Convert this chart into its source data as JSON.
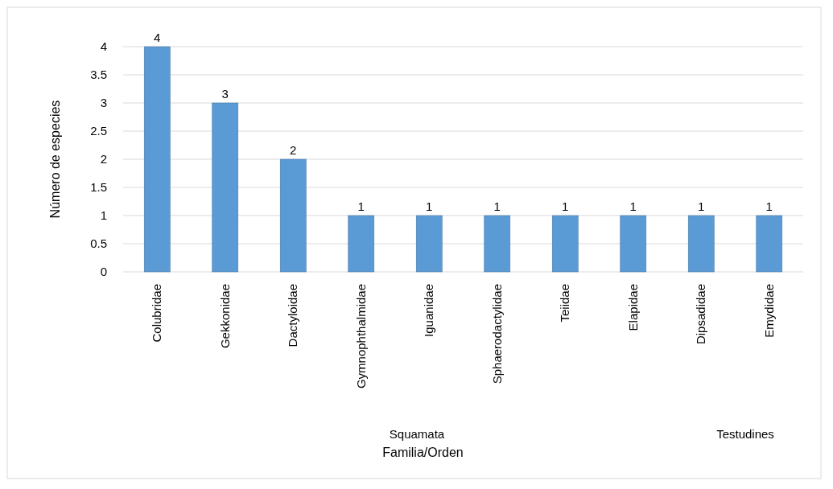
{
  "chart_data": {
    "type": "bar",
    "xlabel": "Familia/Orden",
    "ylabel": "Número de especies",
    "categories": [
      "Colubridae",
      "Gekkonidae",
      "Dactyloidae",
      "Gymnophthalmidae",
      "Iguanidae",
      "Sphaerodactylidae",
      "Teiidae",
      "Elapidae",
      "Dipsadidae",
      "Emydidae"
    ],
    "values": [
      4,
      3,
      2,
      1,
      1,
      1,
      1,
      1,
      1,
      1
    ],
    "color": "#5b9bd5",
    "ylim": [
      0,
      4
    ],
    "yticks": [
      0,
      0.5,
      1,
      1.5,
      2,
      2.5,
      3,
      3.5,
      4
    ],
    "grid": "y",
    "data_labels": true,
    "annotations": [
      "Squamata",
      "Testudines"
    ]
  }
}
